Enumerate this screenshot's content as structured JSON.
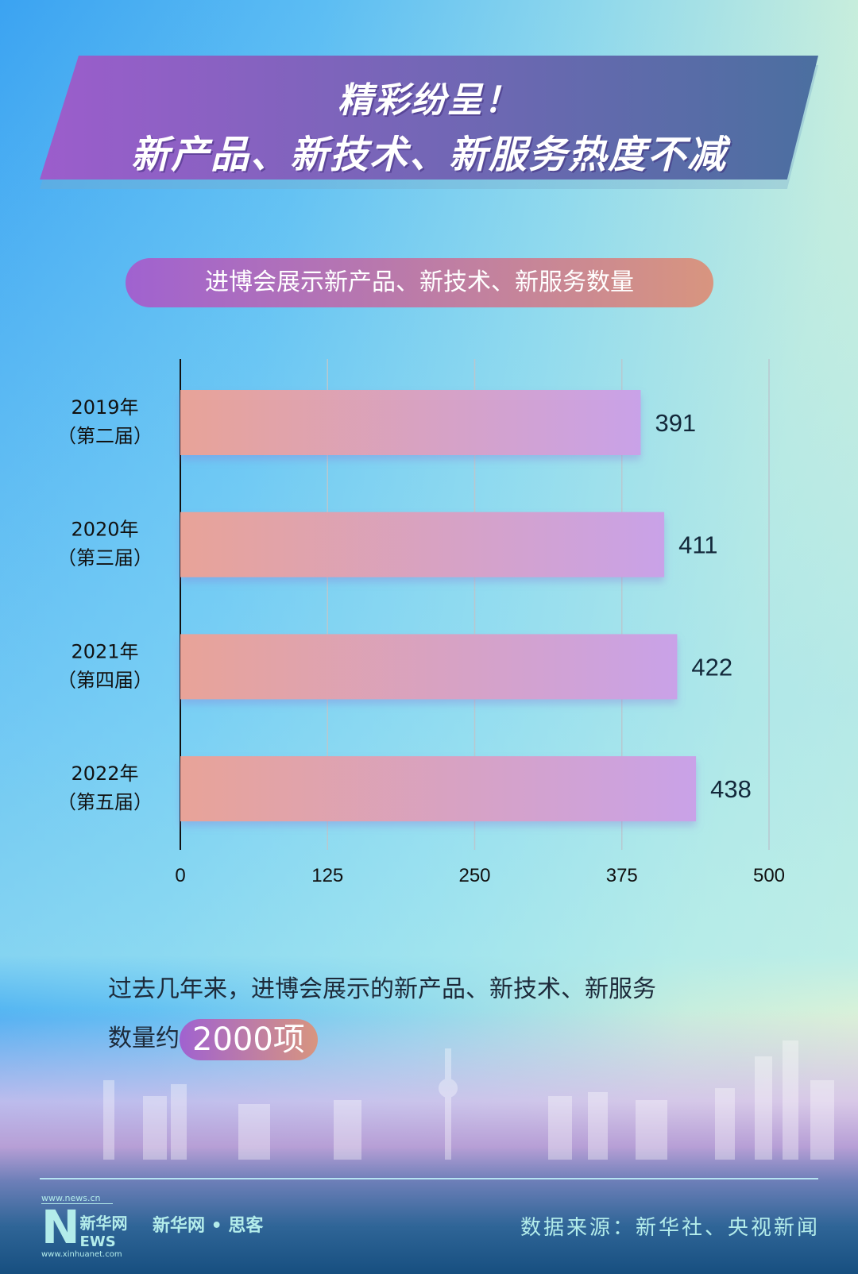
{
  "header": {
    "line1": "精彩纷呈！",
    "line2": "新产品、新技术、新服务热度不减"
  },
  "chart_data": {
    "type": "bar",
    "orientation": "horizontal",
    "title": "进博会展示新产品、新技术、新服务数量",
    "categories": [
      [
        "2019年",
        "（第二届）"
      ],
      [
        "2020年",
        "（第三届）"
      ],
      [
        "2021年",
        "（第四届）"
      ],
      [
        "2022年",
        "（第五届）"
      ]
    ],
    "values": [
      391,
      411,
      422,
      438
    ],
    "xlim": [
      0,
      500
    ],
    "xticks": [
      0,
      125,
      250,
      375,
      500
    ],
    "grid": true,
    "bar_gradient": [
      "#e8a398",
      "#c9a2e8"
    ]
  },
  "summary": {
    "line1": "过去几年来，进博会展示的新产品、新技术、新服务",
    "prefix": "数量约",
    "highlight": "2000项"
  },
  "footer": {
    "logo_top": "www.news.cn",
    "logo_cn": "新华网",
    "logo_en": "NEWS",
    "logo_bottom": "www.xinhuanet.com",
    "brand": "新华网 • 思客",
    "source": "数据来源：新华社、央视新闻"
  },
  "colors": {
    "title_banner": [
      "#9c5dcc",
      "#4b6fa0"
    ],
    "text": "#1d2a3a",
    "footer_text": "#b3ecea"
  }
}
